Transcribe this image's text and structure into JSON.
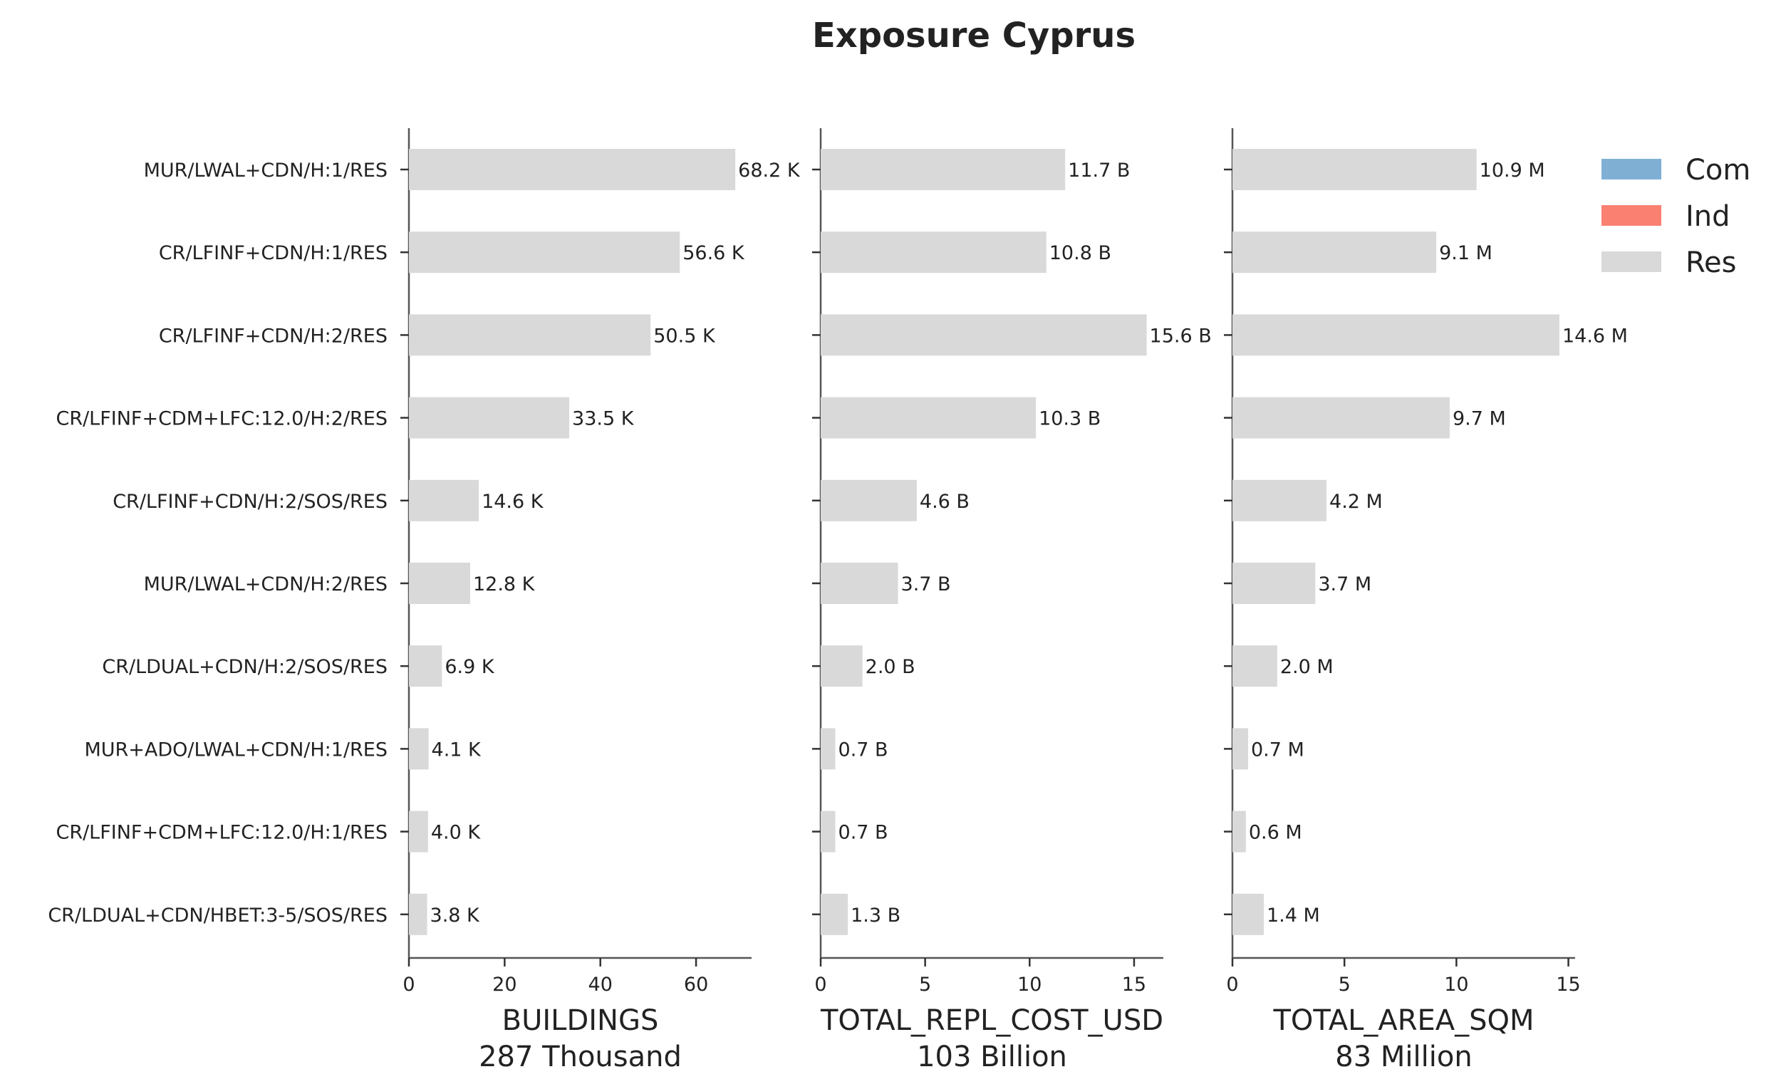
{
  "chart_data": {
    "type": "bar",
    "orientation": "horizontal",
    "title": "Exposure Cyprus",
    "categories": [
      "MUR/LWAL+CDN/H:1/RES",
      "CR/LFINF+CDN/H:1/RES",
      "CR/LFINF+CDN/H:2/RES",
      "CR/LFINF+CDM+LFC:12.0/H:2/RES",
      "CR/LFINF+CDN/H:2/SOS/RES",
      "MUR/LWAL+CDN/H:2/RES",
      "CR/LDUAL+CDN/H:2/SOS/RES",
      "MUR+ADO/LWAL+CDN/H:1/RES",
      "CR/LFINF+CDM+LFC:12.0/H:1/RES",
      "CR/LDUAL+CDN/HBET:3-5/SOS/RES"
    ],
    "legend": {
      "placement": "top-right",
      "entries": [
        {
          "name": "Com",
          "color": "#7fb0d4"
        },
        {
          "name": "Ind",
          "color": "#fa8072"
        },
        {
          "name": "Res",
          "color": "#d9d9d9"
        }
      ]
    },
    "panels": [
      {
        "xlabel": "BUILDINGS",
        "subtitle": "287 Thousand",
        "xlim": [
          0,
          71.6
        ],
        "xticks": [
          0,
          20,
          40,
          60
        ],
        "series": [
          {
            "name": "Res",
            "values": [
              68.2,
              56.6,
              50.5,
              33.5,
              14.6,
              12.8,
              6.9,
              4.1,
              4.0,
              3.8
            ],
            "labels": [
              "68.2 K",
              "56.6 K",
              "50.5 K",
              "33.5 K",
              "14.6 K",
              "12.8 K",
              "6.9 K",
              "4.1 K",
              "4.0 K",
              "3.8 K"
            ]
          }
        ]
      },
      {
        "xlabel": "TOTAL_REPL_COST_USD",
        "subtitle": "103 Billion",
        "xlim": [
          0,
          16.4
        ],
        "xticks": [
          0,
          5,
          10,
          15
        ],
        "series": [
          {
            "name": "Res",
            "values": [
              11.7,
              10.8,
              15.6,
              10.3,
              4.6,
              3.7,
              2.0,
              0.7,
              0.7,
              1.3
            ],
            "labels": [
              "11.7 B",
              "10.8 B",
              "15.6 B",
              "10.3 B",
              "4.6 B",
              "3.7 B",
              "2.0 B",
              "0.7 B",
              "0.7 B",
              "1.3 B"
            ]
          }
        ]
      },
      {
        "xlabel": "TOTAL_AREA_SQM",
        "subtitle": "83 Million",
        "xlim": [
          0,
          15.3
        ],
        "xticks": [
          0,
          5,
          10,
          15
        ],
        "series": [
          {
            "name": "Res",
            "values": [
              10.9,
              9.1,
              14.6,
              9.7,
              4.2,
              3.7,
              2.0,
              0.7,
              0.6,
              1.4
            ],
            "labels": [
              "10.9 M",
              "9.1 M",
              "14.6 M",
              "9.7 M",
              "4.2 M",
              "3.7 M",
              "2.0 M",
              "0.7 M",
              "0.6 M",
              "1.4 M"
            ]
          }
        ]
      }
    ],
    "grid": false
  }
}
